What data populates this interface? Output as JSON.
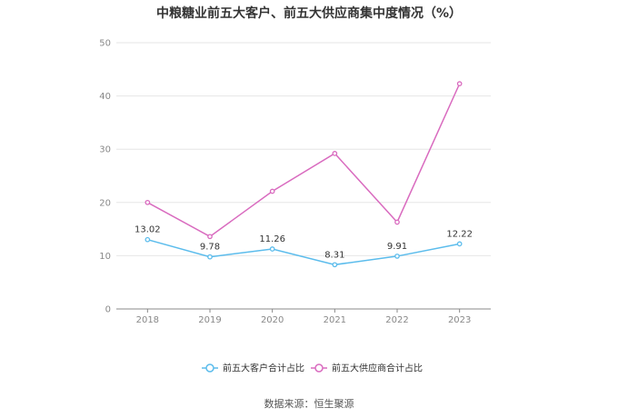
{
  "chart_data": {
    "type": "line",
    "title": "中粮糖业前五大客户、前五大供应商集中度情况（%）",
    "x": [
      "2018",
      "2019",
      "2020",
      "2021",
      "2022",
      "2023"
    ],
    "ylim": [
      0,
      50
    ],
    "yticks": [
      "0",
      "10",
      "20",
      "30",
      "40",
      "50"
    ],
    "grid": true,
    "legend_position": "bottom",
    "series": [
      {
        "name": "前五大客户合计占比",
        "color": "#5bbcec",
        "values": [
          13.02,
          9.78,
          11.26,
          8.31,
          9.91,
          12.22
        ],
        "labels": [
          "13.02",
          "9.78",
          "11.26",
          "8.31",
          "9.91",
          "12.22"
        ]
      },
      {
        "name": "前五大供应商合计占比",
        "color": "#d96bbf",
        "values": [
          20.0,
          13.6,
          22.1,
          29.2,
          16.3,
          42.3
        ],
        "labels": []
      }
    ],
    "source": "数据来源：恒生聚源"
  }
}
